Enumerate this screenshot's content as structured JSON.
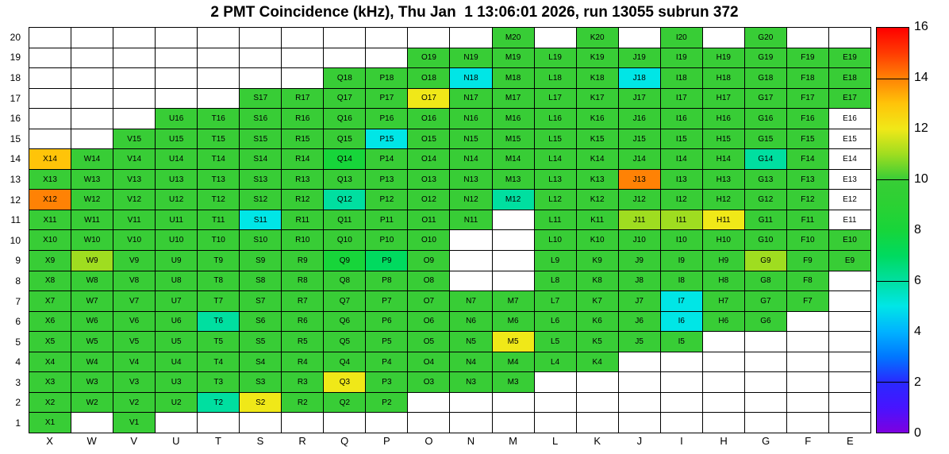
{
  "title": "2 PMT Coincidence (kHz), Thu Jan  1 13:06:01 2026, run 13055 subrun 372",
  "chart_data": {
    "type": "heatmap",
    "title": "2 PMT Coincidence (kHz), Thu Jan  1 13:06:01 2026, run 13055 subrun 372",
    "xlabel": "",
    "ylabel": "",
    "columns": [
      "X",
      "W",
      "V",
      "U",
      "T",
      "S",
      "R",
      "Q",
      "P",
      "O",
      "N",
      "M",
      "L",
      "K",
      "J",
      "I",
      "H",
      "G",
      "F",
      "E"
    ],
    "rows": [
      20,
      19,
      18,
      17,
      16,
      15,
      14,
      13,
      12,
      11,
      10,
      9,
      8,
      7,
      6,
      5,
      4,
      3,
      2,
      1
    ],
    "colorbar": {
      "min": 0,
      "max": 16,
      "ticks": [
        0,
        2,
        4,
        6,
        8,
        10,
        12,
        14,
        16
      ],
      "tick_lines": [
        2,
        6,
        10,
        14
      ]
    },
    "palette": [
      [
        0,
        "#7d00e0"
      ],
      [
        1,
        "#4714ff"
      ],
      [
        2,
        "#2929ff"
      ],
      [
        3,
        "#0077ff"
      ],
      [
        4,
        "#00b3ff"
      ],
      [
        5,
        "#00e6e6"
      ],
      [
        6,
        "#00dfa0"
      ],
      [
        7,
        "#00da5f"
      ],
      [
        8,
        "#17d53a"
      ],
      [
        9,
        "#2bd133"
      ],
      [
        10,
        "#38cd36"
      ],
      [
        11,
        "#9fdd20"
      ],
      [
        12,
        "#f0e818"
      ],
      [
        13,
        "#ffc409"
      ],
      [
        14,
        "#ff8205"
      ],
      [
        15,
        "#ff3b02"
      ],
      [
        16,
        "#ff0000"
      ]
    ],
    "cells": {
      "20": {
        "M": 10,
        "K": 10,
        "I": 10,
        "G": 10
      },
      "19": {
        "O": 10,
        "N": 10,
        "M": 10,
        "L": 10,
        "K": 10,
        "J": 10,
        "I": 10,
        "H": 10,
        "G": 10,
        "F": 10,
        "E": 10
      },
      "18": {
        "Q": 10,
        "P": 10,
        "O": 10,
        "N": 5,
        "M": 10,
        "L": 10,
        "K": 10,
        "J": 5,
        "I": 10,
        "H": 10,
        "G": 10,
        "F": 10,
        "E": 10
      },
      "17": {
        "S": 10,
        "R": 10,
        "Q": 10,
        "P": 10,
        "O": 12,
        "N": 10,
        "M": 10,
        "L": 10,
        "K": 10,
        "J": 10,
        "I": 10,
        "H": 10,
        "G": 10,
        "F": 10,
        "E": 10
      },
      "16": {
        "U": 10,
        "T": 10,
        "S": 10,
        "R": 10,
        "Q": 10,
        "P": 10,
        "O": 10,
        "N": 10,
        "M": 10,
        "L": 10,
        "K": 10,
        "J": 10,
        "I": 10,
        "H": 10,
        "G": 10,
        "F": 10,
        "E": 0
      },
      "15": {
        "V": 10,
        "U": 10,
        "T": 10,
        "S": 10,
        "R": 10,
        "Q": 10,
        "P": 5,
        "O": 10,
        "N": 10,
        "M": 10,
        "L": 10,
        "K": 10,
        "J": 10,
        "I": 10,
        "H": 10,
        "G": 10,
        "F": 10,
        "E": 0
      },
      "14": {
        "X": 13,
        "W": 10,
        "V": 10,
        "U": 10,
        "T": 10,
        "S": 10,
        "R": 10,
        "Q": 8,
        "P": 10,
        "O": 10,
        "N": 10,
        "M": 10,
        "L": 10,
        "K": 10,
        "J": 10,
        "I": 10,
        "H": 10,
        "G": 6,
        "F": 10,
        "E": 0
      },
      "13": {
        "X": 10,
        "W": 10,
        "V": 10,
        "U": 10,
        "T": 10,
        "S": 10,
        "R": 10,
        "Q": 10,
        "P": 10,
        "O": 10,
        "N": 10,
        "M": 10,
        "L": 10,
        "K": 10,
        "J": 14,
        "I": 10,
        "H": 10,
        "G": 10,
        "F": 10,
        "E": 0
      },
      "12": {
        "X": 14,
        "W": 10,
        "V": 10,
        "U": 10,
        "T": 10,
        "S": 10,
        "R": 10,
        "Q": 6,
        "P": 10,
        "O": 10,
        "N": 10,
        "M": 6,
        "L": 10,
        "K": 10,
        "J": 10,
        "I": 10,
        "H": 10,
        "G": 10,
        "F": 10,
        "E": 0
      },
      "11": {
        "X": 10,
        "W": 10,
        "V": 10,
        "U": 10,
        "T": 10,
        "S": 5,
        "R": 10,
        "Q": 10,
        "P": 10,
        "O": 10,
        "N": 10,
        "L": 10,
        "K": 10,
        "J": 11,
        "I": 11,
        "H": 12,
        "G": 10,
        "F": 10,
        "E": 0
      },
      "10": {
        "X": 10,
        "W": 10,
        "V": 10,
        "U": 10,
        "T": 10,
        "S": 10,
        "R": 10,
        "Q": 10,
        "P": 10,
        "O": 10,
        "L": 10,
        "K": 10,
        "J": 10,
        "I": 10,
        "H": 10,
        "G": 10,
        "F": 10,
        "E": 10
      },
      "9": {
        "X": 10,
        "W": 11,
        "V": 10,
        "U": 10,
        "T": 10,
        "S": 10,
        "R": 10,
        "Q": 8,
        "P": 7,
        "O": 10,
        "L": 10,
        "K": 10,
        "J": 10,
        "I": 10,
        "H": 10,
        "G": 11,
        "F": 10,
        "E": 10
      },
      "8": {
        "X": 10,
        "W": 10,
        "V": 10,
        "U": 10,
        "T": 10,
        "S": 10,
        "R": 10,
        "Q": 10,
        "P": 10,
        "O": 10,
        "L": 10,
        "K": 10,
        "J": 10,
        "I": 10,
        "H": 10,
        "G": 10,
        "F": 10
      },
      "7": {
        "X": 10,
        "W": 10,
        "V": 10,
        "U": 10,
        "T": 10,
        "S": 10,
        "R": 10,
        "Q": 10,
        "P": 10,
        "O": 10,
        "N": 10,
        "M": 10,
        "L": 10,
        "K": 10,
        "J": 10,
        "I": 5,
        "H": 10,
        "G": 10,
        "F": 10
      },
      "6": {
        "X": 10,
        "W": 10,
        "V": 10,
        "U": 10,
        "T": 6,
        "S": 10,
        "R": 10,
        "Q": 10,
        "P": 10,
        "O": 10,
        "N": 10,
        "M": 10,
        "L": 10,
        "K": 10,
        "J": 10,
        "I": 5,
        "H": 10,
        "G": 10
      },
      "5": {
        "X": 10,
        "W": 10,
        "V": 10,
        "U": 10,
        "T": 10,
        "S": 10,
        "R": 10,
        "Q": 10,
        "P": 10,
        "O": 10,
        "N": 10,
        "M": 12,
        "L": 10,
        "K": 10,
        "J": 10,
        "I": 10
      },
      "4": {
        "X": 10,
        "W": 10,
        "V": 10,
        "U": 10,
        "T": 10,
        "S": 10,
        "R": 10,
        "Q": 10,
        "P": 10,
        "O": 10,
        "N": 10,
        "M": 10,
        "L": 10,
        "K": 10
      },
      "3": {
        "X": 10,
        "W": 10,
        "V": 10,
        "U": 10,
        "T": 10,
        "S": 10,
        "R": 10,
        "Q": 12,
        "P": 10,
        "O": 10,
        "N": 10,
        "M": 10
      },
      "2": {
        "X": 10,
        "W": 10,
        "V": 10,
        "U": 10,
        "T": 6,
        "S": 12,
        "R": 10,
        "Q": 10,
        "P": 10
      },
      "1": {
        "X": 10,
        "V": 10
      }
    }
  }
}
